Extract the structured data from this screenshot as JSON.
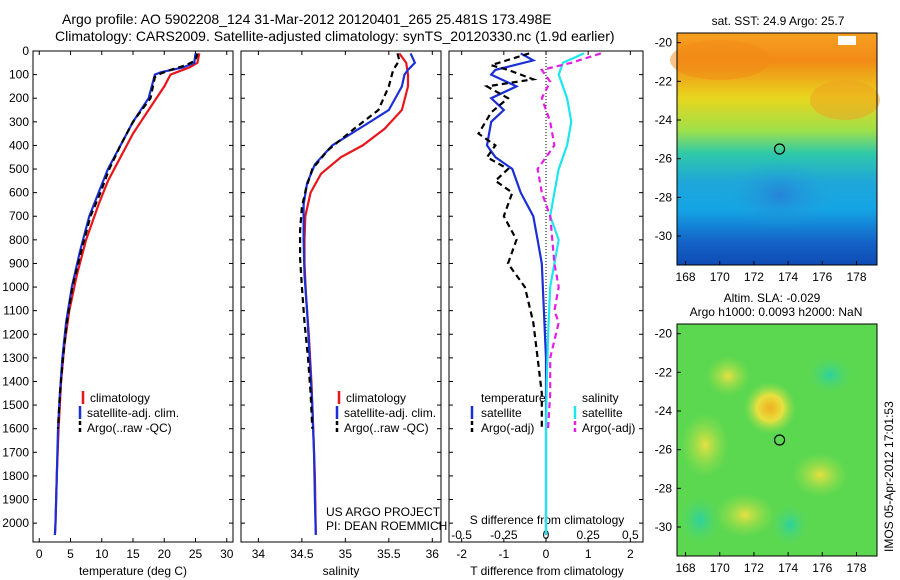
{
  "header": {
    "title_line1": "Argo profile: AO 5902208_124 31-Mar-2012 20120401_265 25.481S 173.498E",
    "title_line2": "Climatology: CARS2009. Satellite-adjusted climatology: synTS_20120330.nc (1.9d earlier)"
  },
  "colors": {
    "climatology": "#e8161b",
    "satellite": "#1a2fd6",
    "argo": "#000000",
    "sat_salinity": "#1ee6ee",
    "argo_salinity": "#e51ee5"
  },
  "chart_data": [
    {
      "type": "line",
      "id": "temperature",
      "xlabel": "temperature (deg C)",
      "ylabel": "",
      "xlim": [
        -1,
        31
      ],
      "ylim": [
        2080,
        0
      ],
      "xticks": [
        0,
        5,
        10,
        15,
        20,
        25,
        30
      ],
      "yticks": [
        0,
        100,
        200,
        300,
        400,
        500,
        600,
        700,
        800,
        900,
        1000,
        1100,
        1200,
        1300,
        1400,
        1500,
        1600,
        1700,
        1800,
        1900,
        2000
      ],
      "legend": [
        "climatology",
        "satellite-adj. clim.",
        "Argo(..raw -QC)"
      ],
      "series": [
        {
          "name": "climatology",
          "style": "solid",
          "color": "#e8161b",
          "points": [
            [
              25.6,
              10
            ],
            [
              25.3,
              50
            ],
            [
              24.0,
              70
            ],
            [
              22.0,
              90
            ],
            [
              21.0,
              100
            ],
            [
              20.0,
              150
            ],
            [
              17.5,
              250
            ],
            [
              15.0,
              350
            ],
            [
              13.0,
              450
            ],
            [
              11.0,
              550
            ],
            [
              9.5,
              650
            ],
            [
              7.5,
              800
            ],
            [
              6.0,
              950
            ],
            [
              4.8,
              1100
            ],
            [
              4.0,
              1250
            ],
            [
              3.5,
              1400
            ],
            [
              3.1,
              1600
            ],
            [
              2.8,
              1800
            ],
            [
              2.6,
              2000
            ],
            [
              2.5,
              2050
            ]
          ]
        },
        {
          "name": "satellite-adj. clim.",
          "style": "solid",
          "color": "#1a2fd6",
          "points": [
            [
              25.0,
              10
            ],
            [
              24.8,
              50
            ],
            [
              23.0,
              70
            ],
            [
              19.5,
              90
            ],
            [
              18.5,
              100
            ],
            [
              17.5,
              200
            ],
            [
              15.0,
              300
            ],
            [
              13.0,
              400
            ],
            [
              11.0,
              500
            ],
            [
              9.5,
              600
            ],
            [
              8.0,
              700
            ],
            [
              6.5,
              850
            ],
            [
              5.2,
              1000
            ],
            [
              4.3,
              1150
            ],
            [
              3.7,
              1300
            ],
            [
              3.3,
              1450
            ],
            [
              3.0,
              1600
            ],
            [
              2.8,
              1800
            ],
            [
              2.6,
              2000
            ],
            [
              2.5,
              2050
            ]
          ]
        },
        {
          "name": "Argo(..raw -QC)",
          "style": "dashed",
          "color": "#000000",
          "points": [
            [
              25.3,
              10
            ],
            [
              25.0,
              40
            ],
            [
              23.5,
              60
            ],
            [
              21.0,
              80
            ],
            [
              19.5,
              95
            ],
            [
              18.5,
              110
            ],
            [
              17.8,
              200
            ],
            [
              15.0,
              300
            ],
            [
              13.0,
              400
            ],
            [
              11.2,
              500
            ],
            [
              9.8,
              600
            ],
            [
              8.2,
              700
            ],
            [
              6.7,
              850
            ],
            [
              5.3,
              1000
            ],
            [
              4.4,
              1150
            ],
            [
              3.8,
              1300
            ],
            [
              3.3,
              1450
            ],
            [
              3.0,
              1600
            ]
          ]
        }
      ]
    },
    {
      "type": "line",
      "id": "salinity",
      "xlabel": "salinity",
      "xlim": [
        33.8,
        36.1
      ],
      "ylim": [
        2080,
        0
      ],
      "xticks": [
        34,
        34.5,
        35,
        35.5,
        36
      ],
      "xticklabels": [
        "34",
        "34.5",
        "35",
        "35.5",
        "36"
      ],
      "legend": [
        "climatology",
        "satellite-adj. clim.",
        "Argo(..raw -QC)"
      ],
      "annotations": [
        "US ARGO PROJECT",
        "PI: DEAN ROEMMICH"
      ],
      "series": [
        {
          "name": "climatology",
          "style": "solid",
          "color": "#e8161b",
          "points": [
            [
              35.62,
              10
            ],
            [
              35.7,
              50
            ],
            [
              35.72,
              100
            ],
            [
              35.72,
              150
            ],
            [
              35.65,
              250
            ],
            [
              35.45,
              330
            ],
            [
              35.2,
              400
            ],
            [
              34.95,
              450
            ],
            [
              34.72,
              520
            ],
            [
              34.6,
              600
            ],
            [
              34.54,
              700
            ],
            [
              34.53,
              800
            ],
            [
              34.53,
              900
            ],
            [
              34.55,
              1050
            ],
            [
              34.58,
              1200
            ],
            [
              34.61,
              1400
            ],
            [
              34.63,
              1600
            ],
            [
              34.65,
              1800
            ],
            [
              34.66,
              2050
            ]
          ]
        },
        {
          "name": "satellite-adj. clim.",
          "style": "solid",
          "color": "#1a2fd6",
          "points": [
            [
              35.75,
              10
            ],
            [
              35.8,
              50
            ],
            [
              35.72,
              80
            ],
            [
              35.68,
              100
            ],
            [
              35.65,
              150
            ],
            [
              35.5,
              250
            ],
            [
              35.2,
              320
            ],
            [
              34.85,
              400
            ],
            [
              34.65,
              480
            ],
            [
              34.56,
              560
            ],
            [
              34.52,
              650
            ],
            [
              34.52,
              800
            ],
            [
              34.53,
              950
            ],
            [
              34.56,
              1100
            ],
            [
              34.59,
              1300
            ],
            [
              34.62,
              1500
            ],
            [
              34.64,
              1700
            ],
            [
              34.65,
              1900
            ],
            [
              34.66,
              2050
            ]
          ]
        },
        {
          "name": "Argo(..raw -QC)",
          "style": "dashed",
          "color": "#000000",
          "points": [
            [
              35.6,
              10
            ],
            [
              35.62,
              40
            ],
            [
              35.55,
              80
            ],
            [
              35.5,
              150
            ],
            [
              35.38,
              250
            ],
            [
              35.1,
              330
            ],
            [
              34.8,
              420
            ],
            [
              34.62,
              500
            ],
            [
              34.55,
              580
            ],
            [
              34.5,
              660
            ],
            [
              34.48,
              760
            ],
            [
              34.48,
              880
            ],
            [
              34.5,
              1000
            ],
            [
              34.53,
              1150
            ],
            [
              34.57,
              1300
            ],
            [
              34.6,
              1450
            ],
            [
              34.62,
              1600
            ]
          ]
        }
      ]
    },
    {
      "type": "line",
      "id": "difference",
      "xlabel": "T difference from climatology",
      "xlabel_top": "S difference from climatology",
      "xlim": [
        -2.3,
        2.3
      ],
      "ylim": [
        2080,
        0
      ],
      "xticks": [
        -2,
        -1,
        0,
        1,
        2
      ],
      "xticklabels_top": [
        "-0.5",
        "-0.25",
        "0",
        "0.25",
        "0.5"
      ],
      "legend_temperature": {
        "title": "temperature",
        "items": [
          "satellite",
          "Argo(-adj)"
        ]
      },
      "legend_salinity": {
        "title": "salinity",
        "items": [
          "satellite",
          "Argo(-adj)"
        ]
      },
      "series": [
        {
          "name": "temperature satellite",
          "style": "solid",
          "color": "#1a2fd6",
          "points": [
            [
              -0.6,
              10
            ],
            [
              -0.3,
              40
            ],
            [
              -1.2,
              80
            ],
            [
              -1.3,
              100
            ],
            [
              -0.7,
              150
            ],
            [
              -1.3,
              200
            ],
            [
              -1.0,
              250
            ],
            [
              -1.3,
              300
            ],
            [
              -1.4,
              400
            ],
            [
              -1.2,
              450
            ],
            [
              -0.8,
              500
            ],
            [
              -0.6,
              600
            ],
            [
              -0.3,
              700
            ],
            [
              -0.2,
              800
            ],
            [
              -0.1,
              900
            ],
            [
              -0.05,
              1100
            ],
            [
              0.0,
              1300
            ],
            [
              0.0,
              1600
            ],
            [
              0.0,
              2050
            ]
          ]
        },
        {
          "name": "temperature Argo(-adj)",
          "style": "dashed",
          "color": "#000000",
          "points": [
            [
              -0.4,
              10
            ],
            [
              -1.3,
              60
            ],
            [
              -0.9,
              80
            ],
            [
              -0.3,
              120
            ],
            [
              -1.4,
              150
            ],
            [
              -0.9,
              200
            ],
            [
              -1.3,
              260
            ],
            [
              -1.6,
              350
            ],
            [
              -1.2,
              400
            ],
            [
              -1.4,
              450
            ],
            [
              -0.9,
              500
            ],
            [
              -1.2,
              550
            ],
            [
              -0.8,
              600
            ],
            [
              -1.0,
              700
            ],
            [
              -0.7,
              800
            ],
            [
              -0.9,
              900
            ],
            [
              -0.5,
              1000
            ],
            [
              -0.3,
              1150
            ],
            [
              -0.2,
              1300
            ],
            [
              -0.1,
              1450
            ],
            [
              -0.1,
              1600
            ]
          ]
        },
        {
          "name": "salinity satellite",
          "style": "solid",
          "color": "#1ee6ee",
          "points": [
            [
              0.9,
              10
            ],
            [
              0.4,
              50
            ],
            [
              0.3,
              100
            ],
            [
              0.5,
              200
            ],
            [
              0.6,
              300
            ],
            [
              0.5,
              400
            ],
            [
              0.4,
              450
            ],
            [
              0.3,
              500
            ],
            [
              0.2,
              600
            ],
            [
              0.1,
              700
            ],
            [
              0.3,
              800
            ],
            [
              0.2,
              900
            ],
            [
              0.1,
              1000
            ],
            [
              0.05,
              1200
            ],
            [
              0.02,
              1400
            ],
            [
              0.0,
              1600
            ],
            [
              0.0,
              2050
            ]
          ]
        },
        {
          "name": "salinity Argo(-adj)",
          "style": "dashed",
          "color": "#e51ee5",
          "points": [
            [
              1.3,
              10
            ],
            [
              0.6,
              50
            ],
            [
              -0.1,
              80
            ],
            [
              0.1,
              130
            ],
            [
              -0.1,
              200
            ],
            [
              0.1,
              300
            ],
            [
              0.2,
              400
            ],
            [
              0.0,
              450
            ],
            [
              -0.2,
              500
            ],
            [
              -0.1,
              600
            ],
            [
              0.1,
              700
            ],
            [
              0.2,
              900
            ],
            [
              0.3,
              1000
            ],
            [
              0.2,
              1100
            ],
            [
              0.3,
              1150
            ],
            [
              0.1,
              1300
            ],
            [
              0.1,
              1450
            ],
            [
              0.05,
              1600
            ]
          ]
        }
      ]
    },
    {
      "type": "heatmap",
      "id": "sst_map",
      "title": "sat. SST: 24.9  Argo: 25.7",
      "xlim": [
        167.5,
        179.2
      ],
      "ylim": [
        -31.5,
        -19.5
      ],
      "xticks": [
        168,
        170,
        172,
        174,
        176,
        178
      ],
      "yticks": [
        -20,
        -22,
        -24,
        -26,
        -28,
        -30
      ],
      "marker": [
        173.5,
        -25.5
      ]
    },
    {
      "type": "heatmap",
      "id": "sla_map",
      "title_line1": "Altim. SLA: -0.029",
      "title_line2": "Argo h1000: 0.0093 h2000: NaN",
      "xlim": [
        167.5,
        179.2
      ],
      "ylim": [
        -31.5,
        -19.5
      ],
      "xticks": [
        168,
        170,
        172,
        174,
        176,
        178
      ],
      "yticks": [
        -20,
        -22,
        -24,
        -26,
        -28,
        -30
      ],
      "marker": [
        173.5,
        -25.5
      ]
    }
  ],
  "imos_label": "IMOS 05-Apr-2012 17:01:53"
}
